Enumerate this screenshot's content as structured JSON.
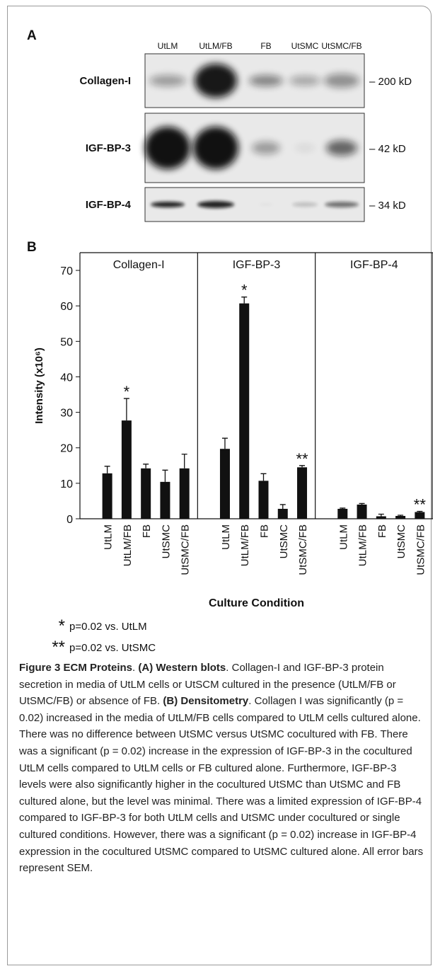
{
  "figure": {
    "panel_a": {
      "label": "A",
      "lanes": [
        "UtLM",
        "UtLM/FB",
        "FB",
        "UtSMC",
        "UtSMC/FB"
      ],
      "rows": [
        {
          "label": "Collagen-I",
          "size": "– 200 kD"
        },
        {
          "label": "IGF-BP-3",
          "size": "– 42 kD"
        },
        {
          "label": "IGF-BP-4",
          "size": "– 34 kD"
        }
      ]
    },
    "panel_b": {
      "label": "B"
    },
    "caption": [
      {
        "text": "Figure 3 ECM Proteins",
        "bold": true
      },
      {
        "text": ". ",
        "bold": false
      },
      {
        "text": "(A) Western blots",
        "bold": true
      },
      {
        "text": ". Collagen-I and IGF-BP-3 protein secretion in media of UtLM cells or UtSCM cultured in the presence (UtLM/FB or UtSMC/FB) or absence of FB. ",
        "bold": false
      },
      {
        "text": "(B) Densitometry",
        "bold": true
      },
      {
        "text": ". Collagen I was significantly (p = 0.02) increased in the media of UtLM/FB cells compared to UtLM cells cultured alone. There was no difference between UtSMC versus UtSMC cocultured with FB. There was a significant (p = 0.02) increase in the expression of IGF-BP-3 in the cocultured UtLM cells compared to UtLM cells or FB cultured alone. Furthermore, IGF-BP-3 levels were also significantly higher in the cocultured UtSMC than UtSMC and FB cultured alone, but the level was minimal. There was a limited expression of IGF-BP-4 compared to IGF-BP-3 for both UtLM cells and UtSMC under cocultured or single cultured conditions. However, there was a significant (p = 0.02) increase in IGF-BP-4 expression in the cocultured UtSMC compared to UtSMC cultured alone. All error bars represent SEM.",
        "bold": false
      }
    ]
  },
  "chart_data": {
    "type": "bar",
    "ylabel": "Intensity (x10⁶)",
    "xlabel": "Culture Condition",
    "ylim": [
      0,
      75
    ],
    "yticks": [
      0,
      10,
      20,
      30,
      40,
      50,
      60,
      70
    ],
    "color": "#111111",
    "categories": [
      "UtLM",
      "UtLM/FB",
      "FB",
      "UtSMC",
      "UtSMC/FB"
    ],
    "panels": [
      {
        "title": "Collagen-I",
        "values": [
          12.8,
          27.7,
          14.2,
          10.4,
          14.2
        ],
        "errors": [
          2,
          6.2,
          1.2,
          3.3,
          4
        ],
        "annotations": [
          {
            "category": "UtLM/FB",
            "text": "*"
          }
        ]
      },
      {
        "title": "IGF-BP-3",
        "values": [
          19.7,
          60.7,
          10.7,
          2.8,
          14.5
        ],
        "errors": [
          3,
          1.8,
          2,
          1.2,
          0.5
        ],
        "annotations": [
          {
            "category": "UtLM/FB",
            "text": "*"
          },
          {
            "category": "UtSMC/FB",
            "text": "**"
          }
        ]
      },
      {
        "title": "IGF-BP-4",
        "values": [
          2.8,
          4,
          0.7,
          0.8,
          1.9
        ],
        "errors": [
          0.2,
          0.3,
          0.6,
          0.2,
          0.2
        ],
        "annotations": [
          {
            "category": "UtSMC/FB",
            "text": "**"
          }
        ]
      }
    ],
    "notes": [
      {
        "symbol": "*",
        "text": "p=0.02 vs. UtLM"
      },
      {
        "symbol": "**",
        "text": "p=0.02 vs. UtSMC"
      }
    ]
  }
}
